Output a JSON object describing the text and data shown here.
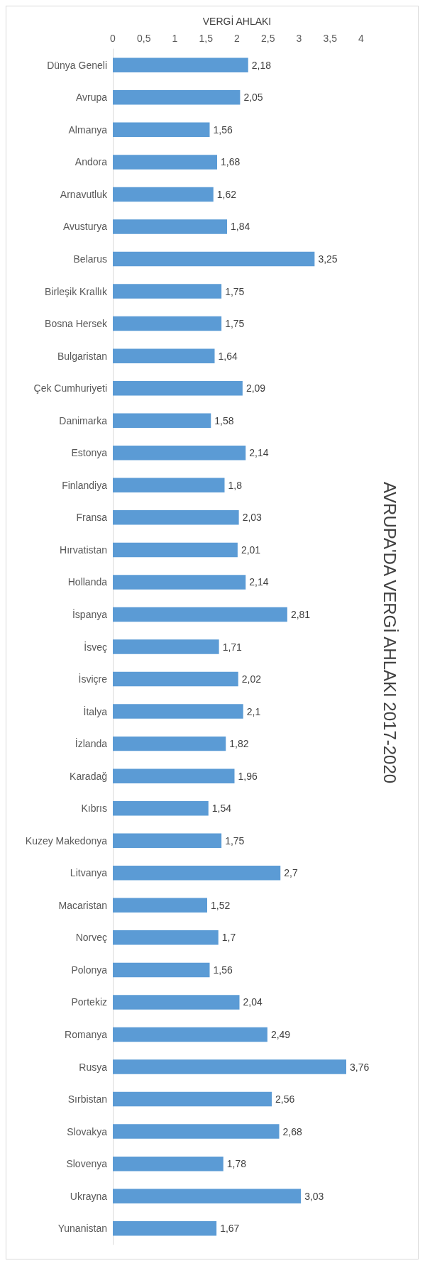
{
  "chart_data": {
    "type": "bar",
    "orientation": "horizontal",
    "title": "AVRUPA'DA VERGİ AHLAKI 2017-2020",
    "xlabel": "VERGİ AHLAKI",
    "categories": [
      "Dünya Geneli",
      "Avrupa",
      "Almanya",
      "Andora",
      "Arnavutluk",
      "Avusturya",
      "Belarus",
      "Birleşik Krallık",
      "Bosna Hersek",
      "Bulgaristan",
      "Çek Cumhuriyeti",
      "Danimarka",
      "Estonya",
      "Finlandiya",
      "Fransa",
      "Hırvatistan",
      "Hollanda",
      "İspanya",
      "İsveç",
      "İsviçre",
      "İtalya",
      "İzlanda",
      "Karadağ",
      "Kıbrıs",
      "Kuzey Makedonya",
      "Litvanya",
      "Macaristan",
      "Norveç",
      "Polonya",
      "Portekiz",
      "Romanya",
      "Rusya",
      "Sırbistan",
      "Slovakya",
      "Slovenya",
      "Ukrayna",
      "Yunanistan"
    ],
    "values": [
      2.18,
      2.05,
      1.56,
      1.68,
      1.62,
      1.84,
      3.25,
      1.75,
      1.75,
      1.64,
      2.09,
      1.58,
      2.14,
      1.8,
      2.03,
      2.01,
      2.14,
      2.81,
      1.71,
      2.02,
      2.1,
      1.82,
      1.96,
      1.54,
      1.75,
      2.7,
      1.52,
      1.7,
      1.56,
      2.04,
      2.49,
      3.76,
      2.56,
      2.68,
      1.78,
      3.03,
      1.67
    ],
    "value_labels": [
      "2,18",
      "2,05",
      "1,56",
      "1,68",
      "1,62",
      "1,84",
      "3,25",
      "1,75",
      "1,75",
      "1,64",
      "2,09",
      "1,58",
      "2,14",
      "1,8",
      "2,03",
      "2,01",
      "2,14",
      "2,81",
      "1,71",
      "2,02",
      "2,1",
      "1,82",
      "1,96",
      "1,54",
      "1,75",
      "2,7",
      "1,52",
      "1,7",
      "1,56",
      "2,04",
      "2,49",
      "3,76",
      "2,56",
      "2,68",
      "1,78",
      "3,03",
      "1,67"
    ],
    "color": "#5b9bd5",
    "xlim": [
      0,
      4
    ],
    "xticks": [
      0,
      {
        "value": 0.5,
        "label": "0,5"
      },
      1,
      {
        "value": 1.5,
        "label": "1,5"
      },
      2,
      {
        "value": 2.5,
        "label": "2,5"
      },
      3,
      {
        "value": 3.5,
        "label": "3,5"
      },
      4
    ],
    "grid": false
  }
}
